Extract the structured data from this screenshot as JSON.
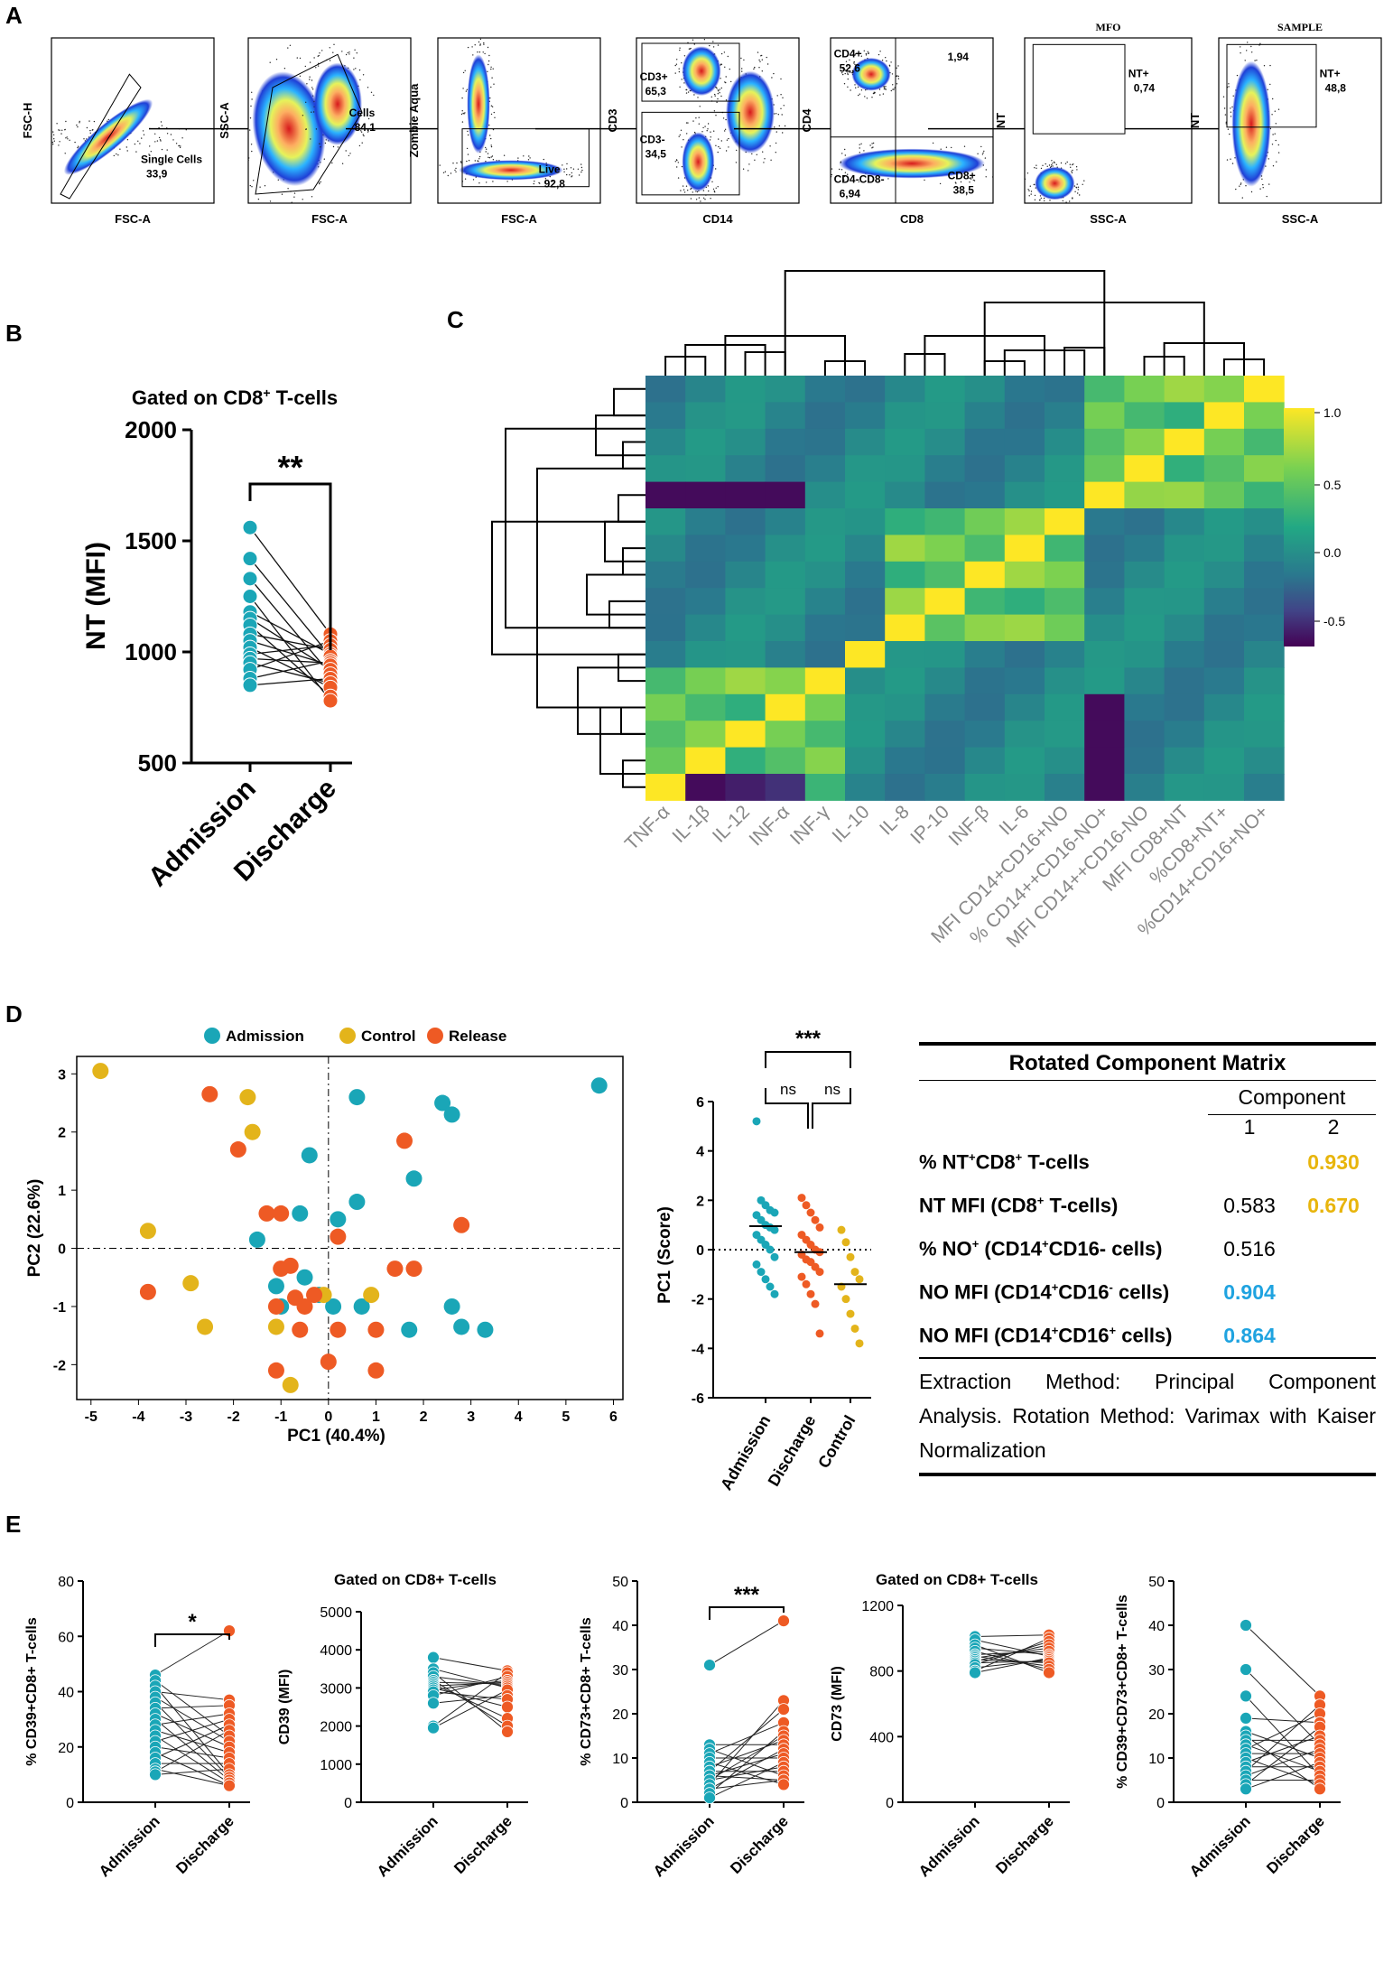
{
  "panels": {
    "A": "A",
    "B": "B",
    "C": "C",
    "D": "D",
    "E": "E"
  },
  "panelA": {
    "plots": [
      {
        "xlabel": "FSC-A",
        "ylabel": "FSC-H",
        "gates": [
          {
            "label": "Single Cells",
            "value": "33,9"
          }
        ]
      },
      {
        "xlabel": "FSC-A",
        "ylabel": "SSC-A",
        "gates": [
          {
            "label": "Cells",
            "value": "84,1"
          }
        ]
      },
      {
        "xlabel": "FSC-A",
        "ylabel": "Zombie Aqua",
        "gates": [
          {
            "label": "Live",
            "value": "92,8"
          }
        ]
      },
      {
        "xlabel": "CD14",
        "ylabel": "CD3",
        "gates": [
          {
            "label": "CD3+",
            "value": "65,3"
          },
          {
            "label": "CD3-",
            "value": "34,5"
          }
        ]
      },
      {
        "xlabel": "CD8",
        "ylabel": "CD4",
        "gates": [
          {
            "label": "CD4+",
            "value": "52,6"
          },
          {
            "label": "",
            "value": "1,94"
          },
          {
            "label": "CD4-CD8-",
            "value": "6,94"
          },
          {
            "label": "CD8+",
            "value": "38,5"
          }
        ]
      },
      {
        "xlabel": "SSC-A",
        "ylabel": "NT",
        "title": "MFO",
        "gates": [
          {
            "label": "NT+",
            "value": "0,74"
          }
        ]
      },
      {
        "xlabel": "SSC-A",
        "ylabel": "NT",
        "title": "SAMPLE",
        "gates": [
          {
            "label": "NT+",
            "value": "48,8"
          }
        ]
      }
    ]
  },
  "panelB": {
    "title_pre": "Gated on CD8",
    "title_sup": "+",
    "title_post": " T-cells",
    "ylabel": "NT (MFI)",
    "yticks": [
      "500",
      "1000",
      "1500",
      "2000"
    ],
    "categories": [
      "Admission",
      "Discharge"
    ],
    "sig": "**"
  },
  "panelC": {
    "labels": [
      "TNF-α",
      "IL-1β",
      "IL-12",
      "INF-α",
      "INF-γ",
      "IL-10",
      "IL-8",
      "IP-10",
      "INF-β",
      "IL-6",
      "MFI CD14+CD16+NO",
      "% CD14++CD16-NO+",
      "MFI CD14++CD16-NO",
      "MFI CD8+NT",
      "%CD8+NT+",
      "%CD14+CD16+NO+"
    ],
    "colorbar_ticks": [
      "1.0",
      "0.5",
      "0.0",
      "-0.5"
    ]
  },
  "panelD": {
    "legend": [
      {
        "name": "Admission",
        "color": "#1aa6b7"
      },
      {
        "name": "Control",
        "color": "#e3b41b"
      },
      {
        "name": "Release",
        "color": "#ee5a24"
      }
    ],
    "xlabel": "PC1 (40.4%)",
    "ylabel": "PC2 (22.6%)",
    "xticks": [
      "-5",
      "-4",
      "-3",
      "-2",
      "-1",
      "0",
      "1",
      "2",
      "3",
      "4",
      "5",
      "6"
    ],
    "yticks": [
      "-2",
      "-1",
      "0",
      "1",
      "2",
      "3"
    ],
    "strip": {
      "ylabel": "PC1 (Score)",
      "yticks": [
        "-6",
        "-4",
        "-2",
        "0",
        "2",
        "4",
        "6"
      ],
      "categories": [
        "Admission",
        "Discharge",
        "Control"
      ],
      "sig_top": "***",
      "sig_left": "ns",
      "sig_right": "ns"
    },
    "table": {
      "title": "Rotated Component Matrix",
      "component": "Component",
      "col1": "1",
      "col2": "2",
      "rows": [
        {
          "label": "% NT",
          "sup1": "+",
          "mid": "CD8",
          "sup2": "+",
          "post": " T-cells",
          "c1": "",
          "c2": "0.930",
          "c2class": "hl-y"
        },
        {
          "label": "NT MFI (CD8",
          "sup1": "+",
          "mid": " T-cells)",
          "sup2": "",
          "post": "",
          "c1": "0.583",
          "c2": "0.670",
          "c2class": "hl-y"
        },
        {
          "label": "% NO",
          "sup1": "+",
          "mid": " (CD14",
          "sup2": "+",
          "post": "CD16- cells)",
          "c1": "0.516",
          "c2": "",
          "c2class": ""
        },
        {
          "label": "NO MFI (CD14",
          "sup1": "+",
          "mid": "CD16",
          "sup2": "-",
          "post": " cells)",
          "c1": "0.904",
          "c2": "",
          "c1class": "hl-b"
        },
        {
          "label": "NO MFI (CD14",
          "sup1": "+",
          "mid": "CD16",
          "sup2": "+",
          "post": " cells)",
          "c1": "0.864",
          "c2": "",
          "c1class": "hl-b"
        }
      ],
      "footer": "Extraction Method: Principal Component Analysis. Rotation Method: Varimax with Kaiser Normalization"
    }
  },
  "panelE": {
    "plots": [
      {
        "ylabel": "% CD39+CD8+ T-cells",
        "yticks": [
          "0",
          "20",
          "40",
          "60",
          "80"
        ],
        "sig": "*",
        "title": ""
      },
      {
        "ylabel": "CD39 (MFI)",
        "yticks": [
          "0",
          "1000",
          "2000",
          "3000",
          "4000",
          "5000"
        ],
        "sig": "",
        "title": "Gated on CD8+ T-cells"
      },
      {
        "ylabel": "% CD73+CD8+ T-cells",
        "yticks": [
          "0",
          "10",
          "20",
          "30",
          "40",
          "50"
        ],
        "sig": "***",
        "title": ""
      },
      {
        "ylabel": "CD73 (MFI)",
        "yticks": [
          "0",
          "400",
          "800",
          "1200"
        ],
        "sig": "",
        "title": "Gated on CD8+ T-cells"
      },
      {
        "ylabel": "% CD39+CD73+CD8+ T-cells",
        "yticks": [
          "0",
          "10",
          "20",
          "30",
          "40",
          "50"
        ],
        "sig": "",
        "title": ""
      }
    ],
    "categories": [
      "Admission",
      "Discharge"
    ]
  },
  "colors": {
    "teal": "#1aa6b7",
    "orange": "#ee5a24",
    "yellow": "#e3b41b"
  }
}
